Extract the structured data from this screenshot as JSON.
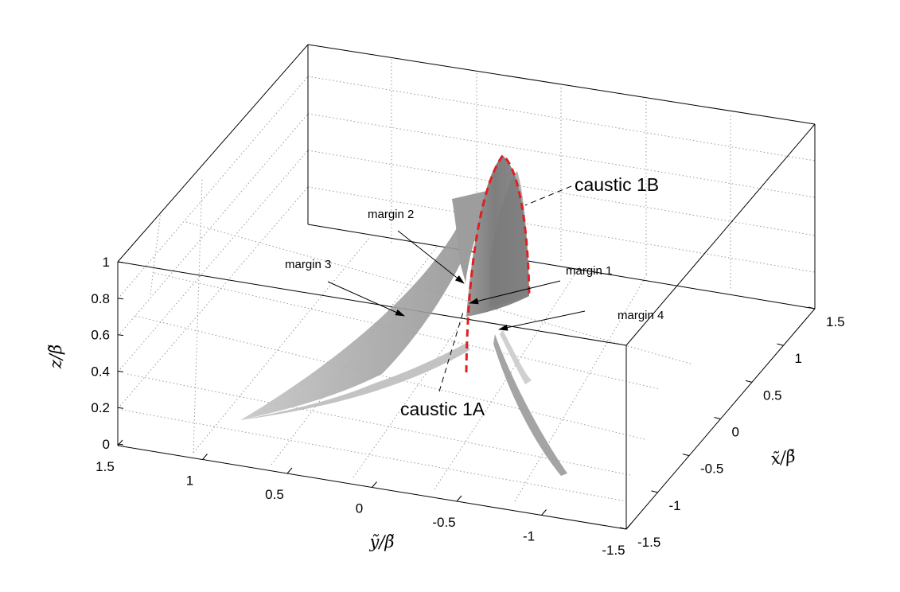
{
  "chart_data": {
    "type": "surface3d",
    "title": "",
    "axes": {
      "x": {
        "label": "x̃/β̃",
        "range": [
          -1.5,
          1.5
        ],
        "ticks": [
          "-1.5",
          "-1",
          "-0.5",
          "0",
          "0.5",
          "1",
          "1.5"
        ]
      },
      "y": {
        "label": "ỹ/β̃",
        "range": [
          -1.5,
          1.5
        ],
        "ticks": [
          "1.5",
          "1",
          "0.5",
          "0",
          "-0.5",
          "-1",
          "-1.5"
        ]
      },
      "z": {
        "label": "z/β̃",
        "range": [
          0,
          1
        ],
        "ticks": [
          "0",
          "0.2",
          "0.4",
          "0.6",
          "0.8",
          "1"
        ]
      }
    },
    "grid": true,
    "surface_color": "#8c8c8c",
    "caustic_color": "#e02020",
    "annotations": {
      "margin_1": "margin 1",
      "margin_2": "margin 2",
      "margin_3": "margin 3",
      "margin_4": "margin 4",
      "caustic_1A": "caustic 1A",
      "caustic_1B": "caustic 1B"
    }
  }
}
